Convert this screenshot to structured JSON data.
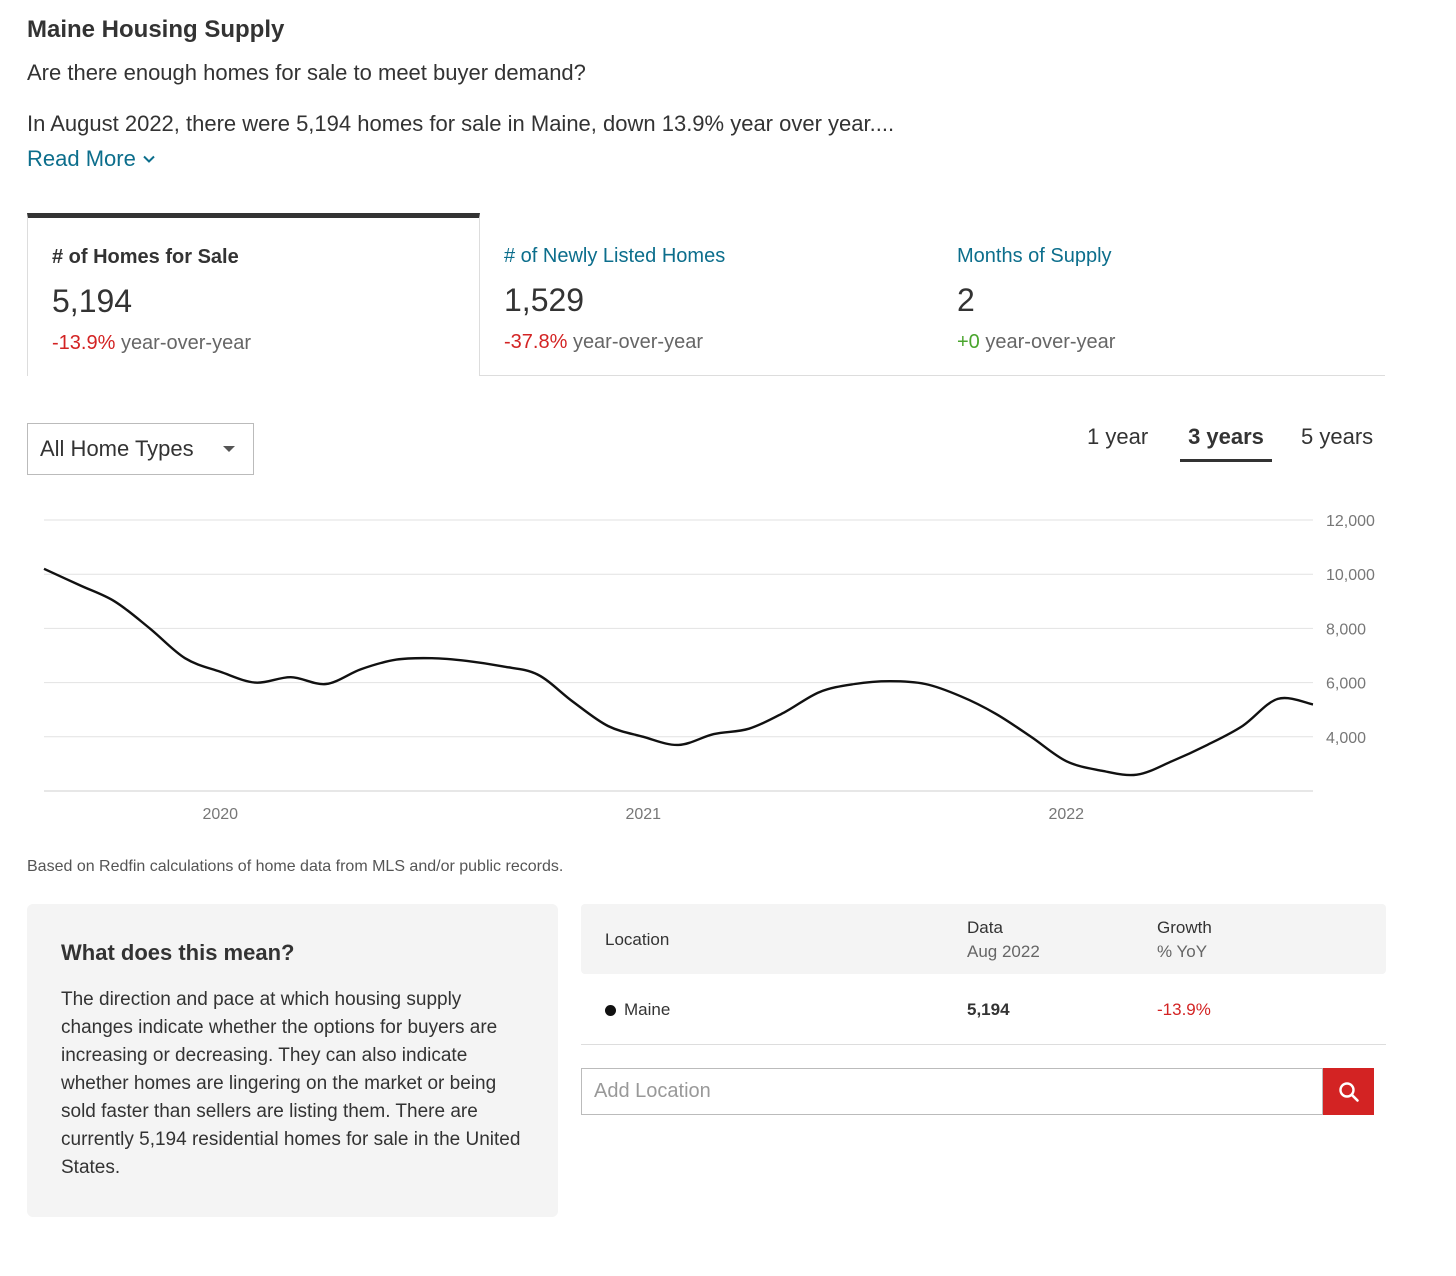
{
  "header": {
    "title": "Maine Housing Supply",
    "question": "Are there enough homes for sale to meet buyer demand?",
    "summary": "In August 2022, there were 5,194 homes for sale in Maine, down 13.9% year over year....",
    "read_more": "Read More"
  },
  "tabs": [
    {
      "label": "# of Homes for Sale",
      "value": "5,194",
      "change": "-13.9%",
      "change_suffix": "year-over-year"
    },
    {
      "label": "# of Newly Listed Homes",
      "value": "1,529",
      "change": "-37.8%",
      "change_suffix": "year-over-year"
    },
    {
      "label": "Months of Supply",
      "value": "2",
      "change": "+0",
      "change_suffix": "year-over-year"
    }
  ],
  "filter": {
    "selected": "All Home Types"
  },
  "ranges": [
    "1 year",
    "3 years",
    "5 years"
  ],
  "chart_data": {
    "type": "line",
    "title": "",
    "xlabel": "",
    "ylabel": "",
    "x_tick_labels": [
      "2020",
      "2021",
      "2022"
    ],
    "y_tick_labels": [
      "12,000",
      "10,000",
      "8,000",
      "6,000",
      "4,000"
    ],
    "ylim": [
      2000,
      12000
    ],
    "grid": true,
    "series": [
      {
        "name": "Maine",
        "x": [
          "2019-08",
          "2019-09",
          "2019-10",
          "2019-11",
          "2019-12",
          "2020-01",
          "2020-02",
          "2020-03",
          "2020-04",
          "2020-05",
          "2020-06",
          "2020-07",
          "2020-08",
          "2020-09",
          "2020-10",
          "2020-11",
          "2020-12",
          "2021-01",
          "2021-02",
          "2021-03",
          "2021-04",
          "2021-05",
          "2021-06",
          "2021-07",
          "2021-08",
          "2021-09",
          "2021-10",
          "2021-11",
          "2021-12",
          "2022-01",
          "2022-02",
          "2022-03",
          "2022-04",
          "2022-05",
          "2022-06",
          "2022-07",
          "2022-08"
        ],
        "values": [
          10200,
          9600,
          9000,
          8000,
          6900,
          6400,
          6000,
          6200,
          5950,
          6500,
          6850,
          6900,
          6800,
          6600,
          6300,
          5300,
          4400,
          4000,
          3700,
          4100,
          4300,
          4900,
          5650,
          5950,
          6050,
          5950,
          5500,
          4850,
          4000,
          3100,
          2750,
          2600,
          3100,
          3700,
          4400,
          5400,
          5194
        ]
      }
    ]
  },
  "footnote": "Based on Redfin calculations of home data from MLS and/or public records.",
  "meaning": {
    "title": "What does this mean?",
    "text": "The direction and pace at which housing supply changes indicate whether the options for buyers are increasing or decreasing. They can also indicate whether homes are lingering on the market or being sold faster than sellers are listing them. There are currently 5,194 residential homes for sale in the United States."
  },
  "table": {
    "col_location": "Location",
    "col_data": "Data",
    "col_data_sub": "Aug 2022",
    "col_growth": "Growth",
    "col_growth_sub": "% YoY",
    "rows": [
      {
        "location": "Maine",
        "data": "5,194",
        "growth": "-13.9%"
      }
    ]
  },
  "add_location": {
    "placeholder": "Add Location"
  },
  "colors": {
    "accent_link": "#0c6e8c",
    "negative": "#d32323",
    "positive": "#4aa52e",
    "search_button": "#d32323"
  }
}
